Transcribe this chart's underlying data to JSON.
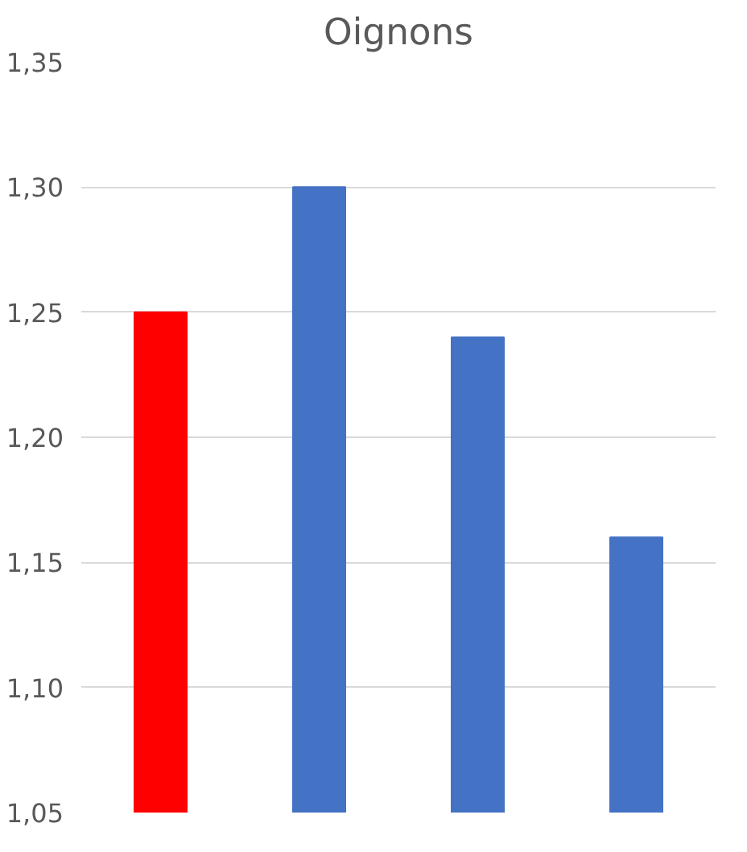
{
  "chart_data": {
    "type": "bar",
    "title": "Oignons",
    "categories": [
      null,
      null,
      null,
      null
    ],
    "values": [
      1.25,
      1.3,
      1.24,
      1.16
    ],
    "colors": [
      "#ff0000",
      "#4472c4",
      "#4472c4",
      "#4472c4"
    ],
    "ylim": [
      1.05,
      1.35
    ],
    "yticks": [
      {
        "value": 1.05,
        "label": "1,05"
      },
      {
        "value": 1.1,
        "label": "1,10"
      },
      {
        "value": 1.15,
        "label": "1,15"
      },
      {
        "value": 1.2,
        "label": "1,20"
      },
      {
        "value": 1.25,
        "label": "1,25"
      },
      {
        "value": 1.3,
        "label": "1,30"
      },
      {
        "value": 1.35,
        "label": "1,35"
      }
    ],
    "grid": "y"
  }
}
